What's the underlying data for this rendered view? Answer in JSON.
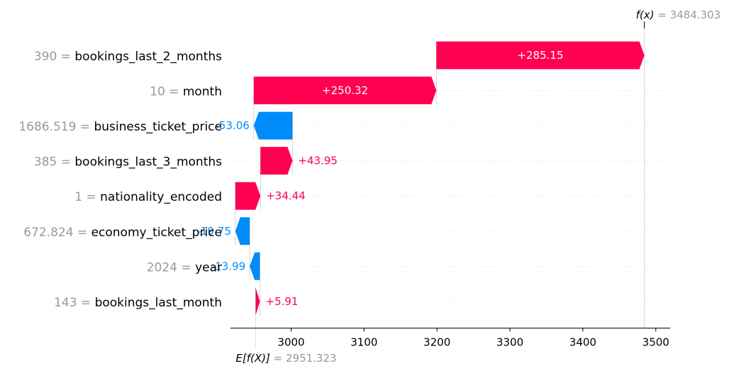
{
  "chart_data": {
    "type": "waterfall",
    "base_value": 2951.323,
    "final_value": 3484.303,
    "fx_label": "f(x)",
    "fx_value_text": "3484.303",
    "ex_label": "E[f(X)]",
    "ex_value_text": "2951.323",
    "xlim": [
      2920,
      3520
    ],
    "xticks": [
      3000,
      3100,
      3200,
      3300,
      3400,
      3500
    ],
    "xtick_labels": [
      "3000",
      "3100",
      "3200",
      "3300",
      "3400",
      "3500"
    ],
    "colors": {
      "positive": "#ff0051",
      "negative": "#008bfb",
      "value_text": "#999999"
    },
    "features": [
      {
        "value": "390",
        "name": "bookings_last_2_months",
        "contribution": 285.15,
        "label": "+285.15"
      },
      {
        "value": "10",
        "name": "month",
        "contribution": 250.32,
        "label": "+250.32"
      },
      {
        "value": "1686.519",
        "name": "business_ticket_price",
        "contribution": -53.06,
        "label": "-53.06"
      },
      {
        "value": "385",
        "name": "bookings_last_3_months",
        "contribution": 43.95,
        "label": "+43.95"
      },
      {
        "value": "1",
        "name": "nationality_encoded",
        "contribution": 34.44,
        "label": "+34.44"
      },
      {
        "value": "672.824",
        "name": "economy_ticket_price",
        "contribution": -19.75,
        "label": "-19.75"
      },
      {
        "value": "2024",
        "name": "year",
        "contribution": -13.99,
        "label": "-13.99"
      },
      {
        "value": "143",
        "name": "bookings_last_month",
        "contribution": 5.91,
        "label": "+5.91"
      }
    ]
  }
}
